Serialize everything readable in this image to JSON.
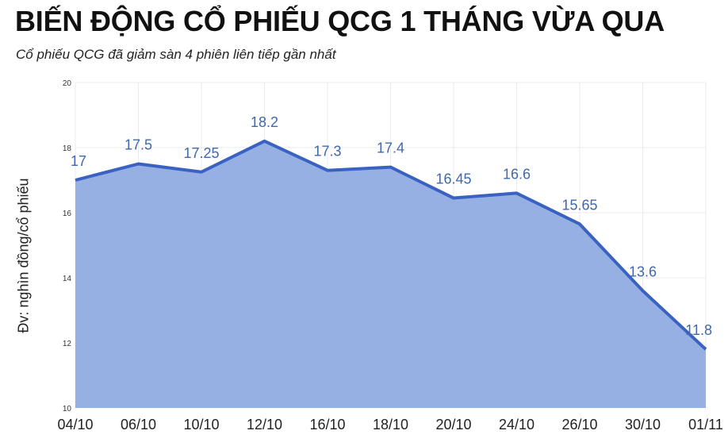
{
  "header": {
    "title": "BIẾN ĐỘNG CỔ PHIẾU QCG 1 THÁNG VỪA QUA",
    "subtitle": "Cổ phiếu QCG đã giảm sàn 4 phiên liên tiếp gần nhất"
  },
  "colors": {
    "line": "#3a62c2",
    "fill": "#97b0e3",
    "label": "#3f68ae",
    "grid": "#ebebeb"
  },
  "chart_data": {
    "type": "area",
    "title": "BIẾN ĐỘNG CỔ PHIẾU QCG 1 THÁNG VỪA QUA",
    "subtitle": "Cổ phiếu QCG đã giảm sàn 4 phiên liên tiếp gần nhất",
    "xlabel": "",
    "ylabel": "Đv: nghìn đồng/cổ phiếu",
    "categories": [
      "04/10",
      "06/10",
      "10/10",
      "12/10",
      "16/10",
      "18/10",
      "20/10",
      "24/10",
      "26/10",
      "30/10",
      "01/11"
    ],
    "values": [
      17,
      17.5,
      17.25,
      18.2,
      17.3,
      17.4,
      16.45,
      16.6,
      15.65,
      13.6,
      11.8
    ],
    "data_labels": [
      "17",
      "17.5",
      "17.25",
      "18.2",
      "17.3",
      "17.4",
      "16.45",
      "16.6",
      "15.65",
      "13.6",
      "11.8"
    ],
    "ylim": [
      10,
      20
    ],
    "yticks": [
      10,
      12,
      14,
      16,
      18,
      20
    ],
    "grid": true,
    "legend": "none"
  }
}
